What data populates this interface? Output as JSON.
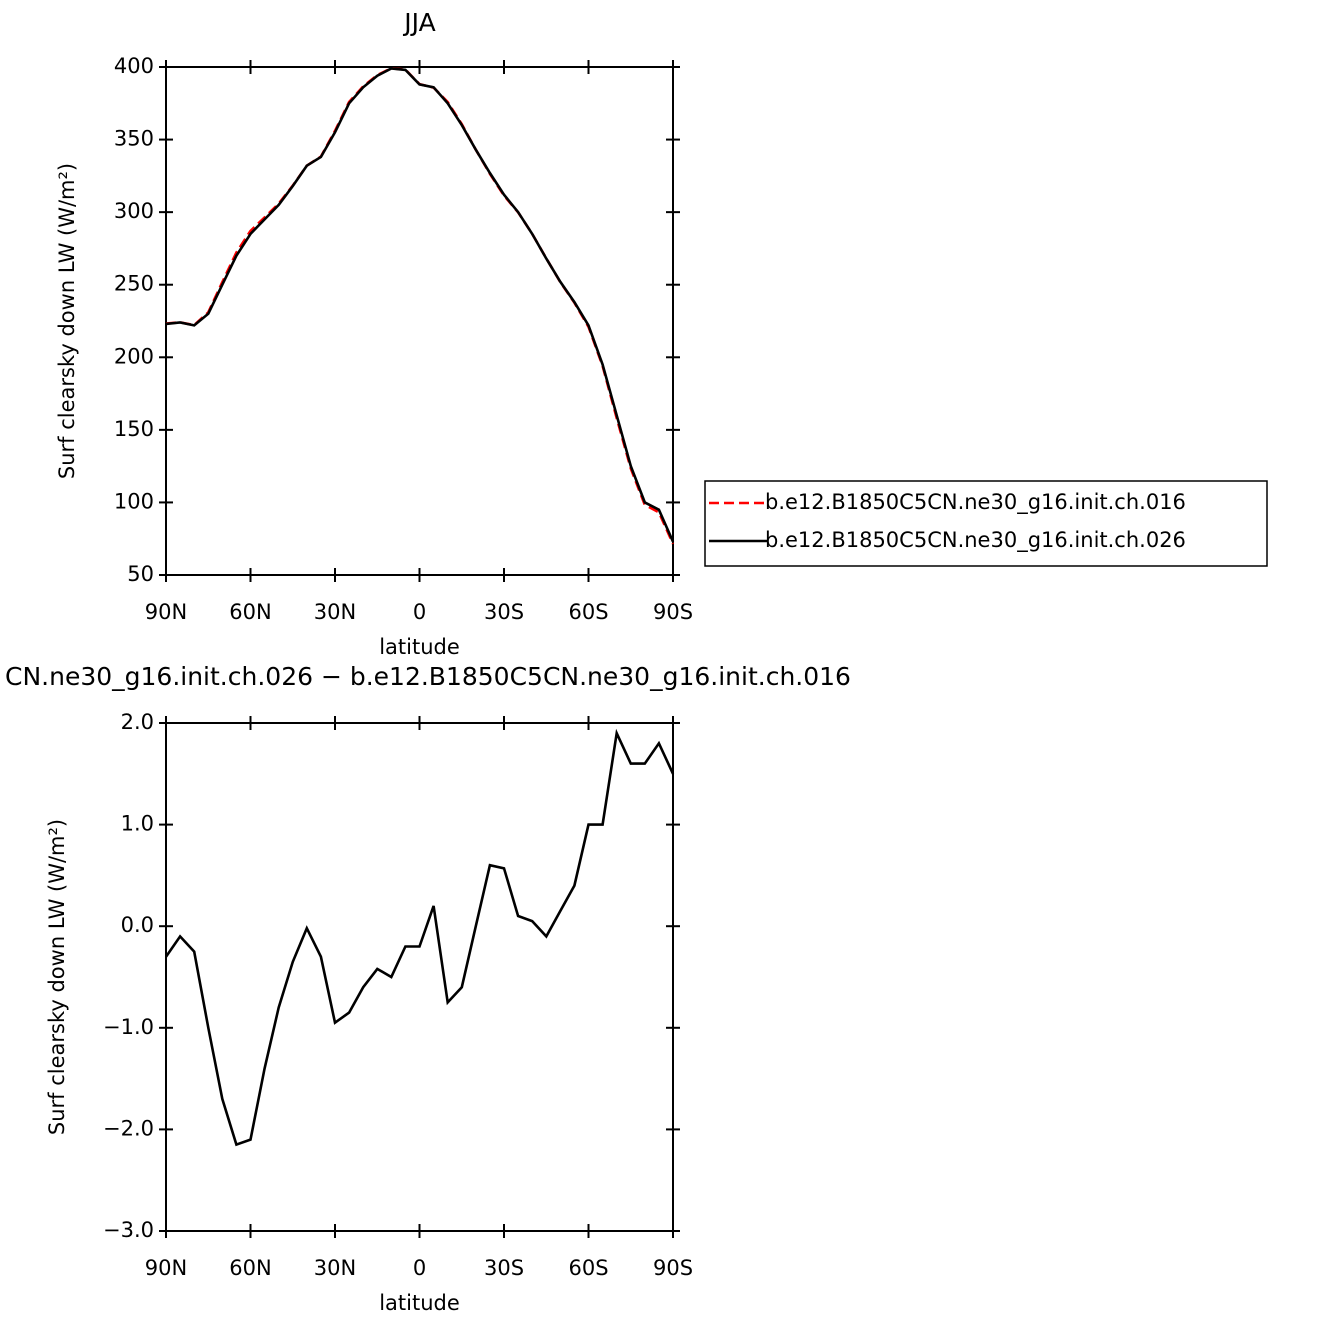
{
  "chart_data": [
    {
      "type": "line",
      "title": "JJA",
      "xlabel": "latitude",
      "ylabel": "Surf clearsky down LW (W/m²)",
      "x": [
        90,
        85,
        80,
        75,
        70,
        65,
        60,
        55,
        50,
        45,
        40,
        35,
        30,
        25,
        20,
        15,
        10,
        5,
        0,
        -5,
        -10,
        -15,
        -20,
        -25,
        -30,
        -35,
        -40,
        -45,
        -50,
        -55,
        -60,
        -65,
        -70,
        -75,
        -80,
        -85,
        -90
      ],
      "xlim": [
        90,
        -90
      ],
      "xticks": [
        {
          "value": 90,
          "label": "90N"
        },
        {
          "value": 60,
          "label": "60N"
        },
        {
          "value": 30,
          "label": "30N"
        },
        0,
        {
          "value": -30,
          "label": "30S"
        },
        {
          "value": -60,
          "label": "60S"
        },
        {
          "value": -90,
          "label": "90S"
        }
      ],
      "ylim": [
        50,
        400
      ],
      "yticks": [
        50,
        100,
        150,
        200,
        250,
        300,
        350,
        400
      ],
      "legend": "right",
      "series": [
        {
          "name": "b.e12.B1850C5CN.ne30_g16.init.ch.016",
          "color": "#ff0000",
          "dashed": true,
          "values": [
            223.3,
            224.1,
            222.2,
            231,
            251.7,
            272.2,
            287.1,
            296.4,
            305.8,
            318.3,
            332,
            338.3,
            356,
            375.9,
            386.6,
            394.4,
            399.1,
            398.2,
            388.2,
            385.8,
            375.8,
            360.6,
            343,
            326.4,
            311.4,
            299.9,
            285,
            268.1,
            251.8,
            237.6,
            221,
            194,
            158.1,
            123.4,
            98.4,
            93.2,
            71.5
          ]
        },
        {
          "name": "b.e12.B1850C5CN.ne30_g16.init.ch.026",
          "color": "#000000",
          "dashed": false,
          "values": [
            223,
            224,
            222,
            230,
            250,
            270,
            285,
            295,
            305,
            318,
            332,
            338,
            355,
            375,
            386,
            394,
            399,
            398,
            388,
            386,
            375,
            360,
            343,
            327,
            312,
            300,
            285,
            268,
            252,
            238,
            222,
            195,
            160,
            125,
            100,
            95,
            73
          ]
        }
      ]
    },
    {
      "type": "line",
      "title": "CN.ne30_g16.init.ch.026 − b.e12.B1850C5CN.ne30_g16.init.ch.016",
      "xlabel": "latitude",
      "ylabel": "Surf clearsky down LW (W/m²)",
      "x": [
        90,
        85,
        80,
        75,
        70,
        65,
        60,
        55,
        50,
        45,
        40,
        35,
        30,
        25,
        20,
        15,
        10,
        5,
        0,
        -5,
        -10,
        -15,
        -20,
        -25,
        -30,
        -35,
        -40,
        -45,
        -50,
        -55,
        -60,
        -65,
        -70,
        -75,
        -80,
        -85,
        -90
      ],
      "xlim": [
        90,
        -90
      ],
      "xticks": [
        {
          "value": 90,
          "label": "90N"
        },
        {
          "value": 60,
          "label": "60N"
        },
        {
          "value": 30,
          "label": "30N"
        },
        0,
        {
          "value": -30,
          "label": "30S"
        },
        {
          "value": -60,
          "label": "60S"
        },
        {
          "value": -90,
          "label": "90S"
        }
      ],
      "ylim": [
        -3,
        2
      ],
      "yticks": [
        {
          "value": -3,
          "label": "−3.0"
        },
        {
          "value": -2,
          "label": "−2.0"
        },
        {
          "value": -1,
          "label": "−1.0"
        },
        {
          "value": 0,
          "label": "0.0"
        },
        {
          "value": 1,
          "label": "1.0"
        },
        {
          "value": 2,
          "label": "2.0"
        }
      ],
      "series": [
        {
          "color": "#000000",
          "dashed": false,
          "values": [
            -0.3,
            -0.1,
            -0.25,
            -1.0,
            -1.7,
            -2.15,
            -2.1,
            -1.4,
            -0.8,
            -0.35,
            -0.02,
            -0.3,
            -0.95,
            -0.85,
            -0.6,
            -0.42,
            -0.5,
            -0.2,
            -0.2,
            0.2,
            -0.75,
            -0.6,
            0.0,
            0.6,
            0.57,
            0.1,
            0.05,
            -0.1,
            0.15,
            0.4,
            1.0,
            1.0,
            1.9,
            1.6,
            1.6,
            1.8,
            1.5
          ]
        }
      ]
    }
  ]
}
